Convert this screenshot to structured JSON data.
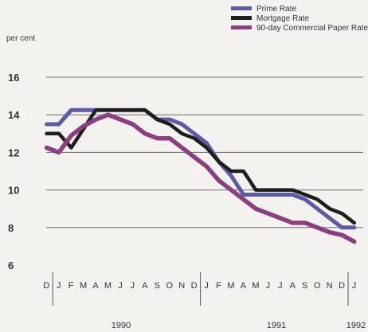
{
  "chart_data": {
    "type": "line",
    "title": "",
    "ylabel": "per cent",
    "xlabel": "",
    "ylim": [
      6,
      16
    ],
    "yticks": [
      6,
      8,
      10,
      12,
      14,
      16
    ],
    "grid": true,
    "legend_position": "top-right",
    "month_labels": [
      "D",
      "J",
      "F",
      "M",
      "A",
      "M",
      "J",
      "J",
      "A",
      "S",
      "O",
      "N",
      "D",
      "J",
      "F",
      "M",
      "A",
      "M",
      "J",
      "J",
      "A",
      "S",
      "O",
      "N",
      "D",
      "J"
    ],
    "year_labels": [
      "1990",
      "1991",
      "1992"
    ],
    "x": [
      "Dec 1989",
      "Jan 1990",
      "Feb 1990",
      "Mar 1990",
      "Apr 1990",
      "May 1990",
      "Jun 1990",
      "Jul 1990",
      "Aug 1990",
      "Sep 1990",
      "Oct 1990",
      "Nov 1990",
      "Dec 1990",
      "Jan 1991",
      "Feb 1991",
      "Mar 1991",
      "Apr 1991",
      "May 1991",
      "Jun 1991",
      "Jul 1991",
      "Aug 1991",
      "Sep 1991",
      "Oct 1991",
      "Nov 1991",
      "Dec 1991",
      "Jan 1992"
    ],
    "series": [
      {
        "name": "Prime Rate",
        "color": "#5b5ba6",
        "values": [
          13.5,
          13.5,
          14.25,
          14.25,
          14.25,
          14.25,
          14.25,
          14.25,
          14.25,
          13.75,
          13.75,
          13.5,
          13.0,
          12.5,
          11.5,
          10.75,
          9.75,
          9.75,
          9.75,
          9.75,
          9.75,
          9.5,
          9.0,
          8.5,
          8.0,
          8.0
        ]
      },
      {
        "name": "Mortgage Rate",
        "color": "#1e1e1e",
        "values": [
          13.0,
          13.0,
          12.25,
          13.25,
          14.25,
          14.25,
          14.25,
          14.25,
          14.25,
          13.75,
          13.5,
          13.0,
          12.75,
          12.25,
          11.5,
          11.0,
          11.0,
          10.0,
          10.0,
          10.0,
          10.0,
          9.75,
          9.5,
          9.0,
          8.75,
          8.25
        ]
      },
      {
        "name": "90-day Commercial Paper Rate",
        "color": "#8a3f7e",
        "values": [
          12.25,
          12.0,
          12.9,
          13.4,
          13.75,
          14.0,
          13.75,
          13.5,
          13.0,
          12.75,
          12.75,
          12.25,
          11.75,
          11.25,
          10.5,
          10.0,
          9.5,
          9.0,
          8.75,
          8.5,
          8.25,
          8.25,
          8.0,
          7.75,
          7.6,
          7.25
        ]
      }
    ]
  }
}
